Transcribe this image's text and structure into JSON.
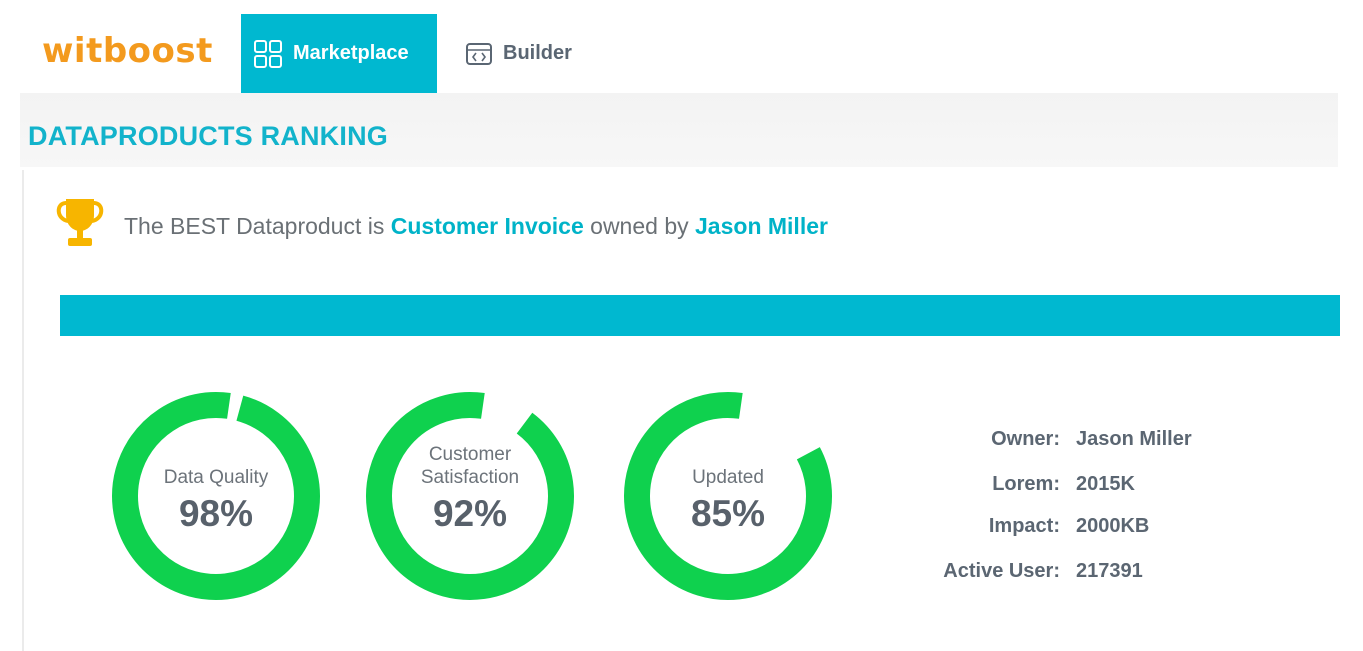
{
  "topbar": {
    "logo": "witboost",
    "tabs": [
      {
        "label": "Marketplace",
        "icon": "grid-icon",
        "active": true
      },
      {
        "label": "Builder",
        "icon": "code-window-icon",
        "active": false
      }
    ]
  },
  "page": {
    "title": "DATAPRODUCTS RANKING"
  },
  "best": {
    "icon": "trophy-icon",
    "prefix": "The BEST Dataproduct is",
    "product": "Customer Invoice",
    "middle": "owned by",
    "owner": "Jason Miller"
  },
  "gauges": [
    {
      "label_lines": [
        "Data Quality"
      ],
      "value_text": "98%",
      "value": 0.98
    },
    {
      "label_lines": [
        "Customer",
        "Satisfaction"
      ],
      "value_text": "92%",
      "value": 0.92
    },
    {
      "label_lines": [
        "Updated"
      ],
      "value_text": "85%",
      "value": 0.85
    }
  ],
  "details": [
    {
      "key": "Owner:",
      "value": "Jason Miller"
    },
    {
      "key": "Lorem:",
      "value": "2015K"
    },
    {
      "key": "Impact:",
      "value": "2000KB"
    },
    {
      "key": "Active User:",
      "value": "217391"
    }
  ],
  "colors": {
    "brand_orange": "#f39a1e",
    "teal": "#00b8d0",
    "title_teal": "#12b3cb",
    "gauge_green": "#0fd14e",
    "trophy": "#f7b500"
  }
}
